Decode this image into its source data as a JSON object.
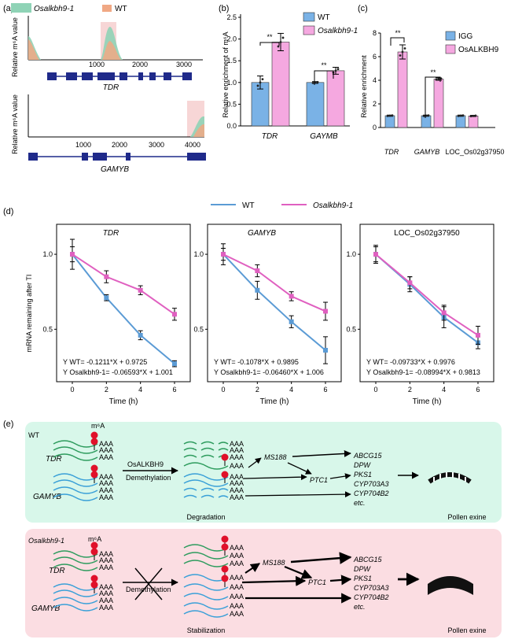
{
  "colors": {
    "wt_blue": "#5b9bd5",
    "mut_pink": "#e060c0",
    "bar_blue": "#7ab2e6",
    "bar_pink": "#f5a8e0",
    "green_peak": "#8fd3b6",
    "orange_peak": "#f0a884",
    "gene_navy": "#1f2a8a",
    "bg_green": "#d8f7ea",
    "bg_pink": "#fbdde2",
    "rna_green": "#2e9c5e",
    "rna_blue": "#3aa0d8",
    "m6a_red": "#e0102a"
  },
  "panel_a": {
    "label": "(a)",
    "legend": [
      "Osalkbh9-1",
      "WT"
    ],
    "ylabel": "Relative m⁶A value",
    "tdr": {
      "name": "TDR",
      "ticks": [
        "1000",
        "2000",
        "3000"
      ]
    },
    "gamyb": {
      "name": "GAMYB",
      "ticks": [
        "1000",
        "2000",
        "3000",
        "4000"
      ]
    }
  },
  "panel_b": {
    "label": "(b)",
    "ylabel": "Relative enrichment of m⁶A",
    "legend": [
      "WT",
      "Osalkbh9-1"
    ],
    "sig": [
      "**",
      "**"
    ],
    "chart_data": {
      "type": "bar",
      "categories": [
        "TDR",
        "GAYMB"
      ],
      "series": [
        {
          "name": "WT",
          "values": [
            1.0,
            1.0
          ]
        },
        {
          "name": "Osalkbh9-1",
          "values": [
            1.93,
            1.27
          ]
        }
      ],
      "errors": [
        [
          0.15,
          0.02
        ],
        [
          0.2,
          0.08
        ]
      ],
      "ylim": [
        0,
        2.5
      ],
      "yticks": [
        "0.0",
        "0.5",
        "1.0",
        "1.5",
        "2.0",
        "2.5"
      ]
    }
  },
  "panel_c": {
    "label": "(c)",
    "ylabel": "Relative enrichment",
    "legend": [
      "IGG",
      "OsALKBH9"
    ],
    "sig": [
      "**",
      "**"
    ],
    "chart_data": {
      "type": "bar",
      "categories": [
        "TDR",
        "GAMYB",
        "LOC_Os02g37950"
      ],
      "series": [
        {
          "name": "IGG",
          "values": [
            1.0,
            1.0,
            1.0
          ]
        },
        {
          "name": "OsALKBH9",
          "values": [
            6.4,
            4.1,
            0.98
          ]
        }
      ],
      "errors": [
        [
          0.05,
          0.05,
          0.05
        ],
        [
          0.6,
          0.1,
          0.05
        ]
      ],
      "ylim": [
        0,
        8
      ],
      "yticks": [
        "0",
        "2",
        "4",
        "6",
        "8"
      ]
    }
  },
  "panel_d": {
    "label": "(d)",
    "legend": [
      "WT",
      "Osalkbh9-1"
    ],
    "ylabel": "mRNA remaining after TI",
    "xlabel": "Time (h)",
    "yticks": [
      "0.5",
      "1.0"
    ],
    "xticks": [
      "0",
      "2",
      "4",
      "6"
    ],
    "chart_data": [
      {
        "type": "line",
        "title": "TDR",
        "x": [
          0,
          2,
          4,
          6
        ],
        "series": [
          {
            "name": "WT",
            "values": [
              1.0,
              0.71,
              0.46,
              0.27
            ]
          },
          {
            "name": "Osalkbh9-1",
            "values": [
              1.0,
              0.85,
              0.76,
              0.6
            ]
          }
        ],
        "errors": [
          [
            0.1,
            0.02,
            0.03,
            0.02
          ],
          [
            0.05,
            0.04,
            0.03,
            0.04
          ]
        ],
        "fit_wt": "Y WT= -0.1211*X + 0.9725",
        "fit_mut": "Y Osalkbh9-1= -0.06593*X + 1.001"
      },
      {
        "type": "line",
        "title": "GAMYB",
        "x": [
          0,
          2,
          4,
          6
        ],
        "series": [
          {
            "name": "WT",
            "values": [
              1.0,
              0.76,
              0.55,
              0.36
            ]
          },
          {
            "name": "Osalkbh9-1",
            "values": [
              1.0,
              0.89,
              0.72,
              0.62
            ]
          }
        ],
        "errors": [
          [
            0.07,
            0.06,
            0.04,
            0.09
          ],
          [
            0.04,
            0.04,
            0.03,
            0.06
          ]
        ],
        "fit_wt": "Y WT= -0.1078*X + 0.9895",
        "fit_mut": "Y Osalkbh9-1= -0.06460*X + 1.006"
      },
      {
        "type": "line",
        "title": "LOC_Os02g37950",
        "x": [
          0,
          2,
          4,
          6
        ],
        "series": [
          {
            "name": "WT",
            "values": [
              1.0,
              0.8,
              0.58,
              0.41
            ]
          },
          {
            "name": "Osalkbh9-1",
            "values": [
              1.0,
              0.81,
              0.61,
              0.46
            ]
          }
        ],
        "errors": [
          [
            0.06,
            0.05,
            0.07,
            0.04
          ],
          [
            0.05,
            0.04,
            0.05,
            0.06
          ]
        ],
        "fit_wt": "Y WT= -0.09733*X + 0.9976",
        "fit_mut": "Y Osalkbh9-1= -0.08994*X + 0.9813"
      }
    ]
  },
  "panel_e": {
    "label": "(e)",
    "wt": {
      "title": "WT",
      "m6a": "m⁶A",
      "tdr": "TDR",
      "gamyb": "GAMYB",
      "enzyme": "OsALKBH9",
      "process": "Demethylation",
      "fate": "Degradation",
      "ms188": "MS188",
      "ptc1": "PTC1",
      "targets": [
        "ABCG15",
        "DPW",
        "PKS1",
        "CYP703A3",
        "CYP704B2",
        "etc."
      ],
      "result": "Pollen exine"
    },
    "mut": {
      "title": "Osalkbh9-1",
      "m6a": "m⁶A",
      "tdr": "TDR",
      "gamyb": "GAMYB",
      "process": "Demethylation",
      "fate": "Stabilization",
      "ms188": "MS188",
      "ptc1": "PTC1",
      "targets": [
        "ABCG15",
        "DPW",
        "PKS1",
        "CYP703A3",
        "CYP704B2",
        "etc."
      ],
      "result": "Pollen exine"
    },
    "aaa": "AAA"
  }
}
